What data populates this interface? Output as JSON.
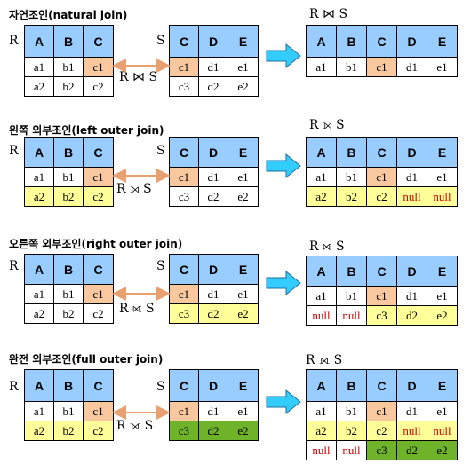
{
  "sections": [
    {
      "title": "자연조인(natural join)",
      "label_r": "R",
      "label_s": "S",
      "op_mid": "R ⋈ S",
      "op_top": "R ⋈ S",
      "r_table": [
        [
          "A",
          "B",
          "C"
        ],
        [
          "a1",
          "b1",
          "c1"
        ],
        [
          "a2",
          "b2",
          "c2"
        ]
      ],
      "s_table": [
        [
          "C",
          "D",
          "E"
        ],
        [
          "c1",
          "d1",
          "e1"
        ],
        [
          "c3",
          "d2",
          "e2"
        ]
      ],
      "result": [
        [
          "A",
          "B",
          "C",
          "D",
          "E"
        ],
        [
          "a1",
          "b1",
          "c1",
          "d1",
          "e1"
        ]
      ]
    },
    {
      "title": "왼쪽 외부조인(left outer join)",
      "label_r": "R",
      "label_s": "S",
      "op_mid": "R ⟕ S",
      "op_top": "R ⟕ S",
      "r_table": [
        [
          "A",
          "B",
          "C"
        ],
        [
          "a1",
          "b1",
          "c1"
        ],
        [
          "a2",
          "b2",
          "c2"
        ]
      ],
      "s_table": [
        [
          "C",
          "D",
          "E"
        ],
        [
          "c1",
          "d1",
          "e1"
        ],
        [
          "c3",
          "d2",
          "e2"
        ]
      ],
      "result": [
        [
          "A",
          "B",
          "C",
          "D",
          "E"
        ],
        [
          "a1",
          "b1",
          "c1",
          "d1",
          "e1"
        ],
        [
          "a2",
          "b2",
          "c2",
          "null",
          "null"
        ]
      ]
    },
    {
      "title": "오른쪽 외부조인(right outer join)",
      "label_r": "R",
      "label_s": "S",
      "op_mid": "R ⟖ S",
      "op_top": "R ⟖ S",
      "r_table": [
        [
          "A",
          "B",
          "C"
        ],
        [
          "a1",
          "b1",
          "c1"
        ],
        [
          "a2",
          "b2",
          "c2"
        ]
      ],
      "s_table": [
        [
          "C",
          "D",
          "E"
        ],
        [
          "c1",
          "d1",
          "e1"
        ],
        [
          "c3",
          "d2",
          "e2"
        ]
      ],
      "result": [
        [
          "A",
          "B",
          "C",
          "D",
          "E"
        ],
        [
          "a1",
          "b1",
          "c1",
          "d1",
          "e1"
        ],
        [
          "null",
          "null",
          "c3",
          "d2",
          "e2"
        ]
      ]
    },
    {
      "title": "완전 외부조인(full outer join)",
      "label_r": "R",
      "label_s": "S",
      "op_mid": "R ⟗ S",
      "op_top": "R ⟗ S",
      "r_table": [
        [
          "A",
          "B",
          "C"
        ],
        [
          "a1",
          "b1",
          "c1"
        ],
        [
          "a2",
          "b2",
          "c2"
        ]
      ],
      "s_table": [
        [
          "C",
          "D",
          "E"
        ],
        [
          "c1",
          "d1",
          "e1"
        ],
        [
          "c3",
          "d2",
          "e2"
        ]
      ],
      "result": [
        [
          "A",
          "B",
          "C",
          "D",
          "E"
        ],
        [
          "a1",
          "b1",
          "c1",
          "d1",
          "e1"
        ],
        [
          "a2",
          "b2",
          "c2",
          "null",
          "null"
        ],
        [
          "null",
          "null",
          "c3",
          "d2",
          "e2"
        ]
      ]
    }
  ],
  "colors": {
    "header": "#99ccff",
    "match": "#fac89e",
    "unmatched": "#ffff99",
    "unmatched_full": "#6fb32a",
    "null_text": "#cc0000",
    "arrow_block": "#33ccff",
    "link_arrow": "#e8a070"
  }
}
